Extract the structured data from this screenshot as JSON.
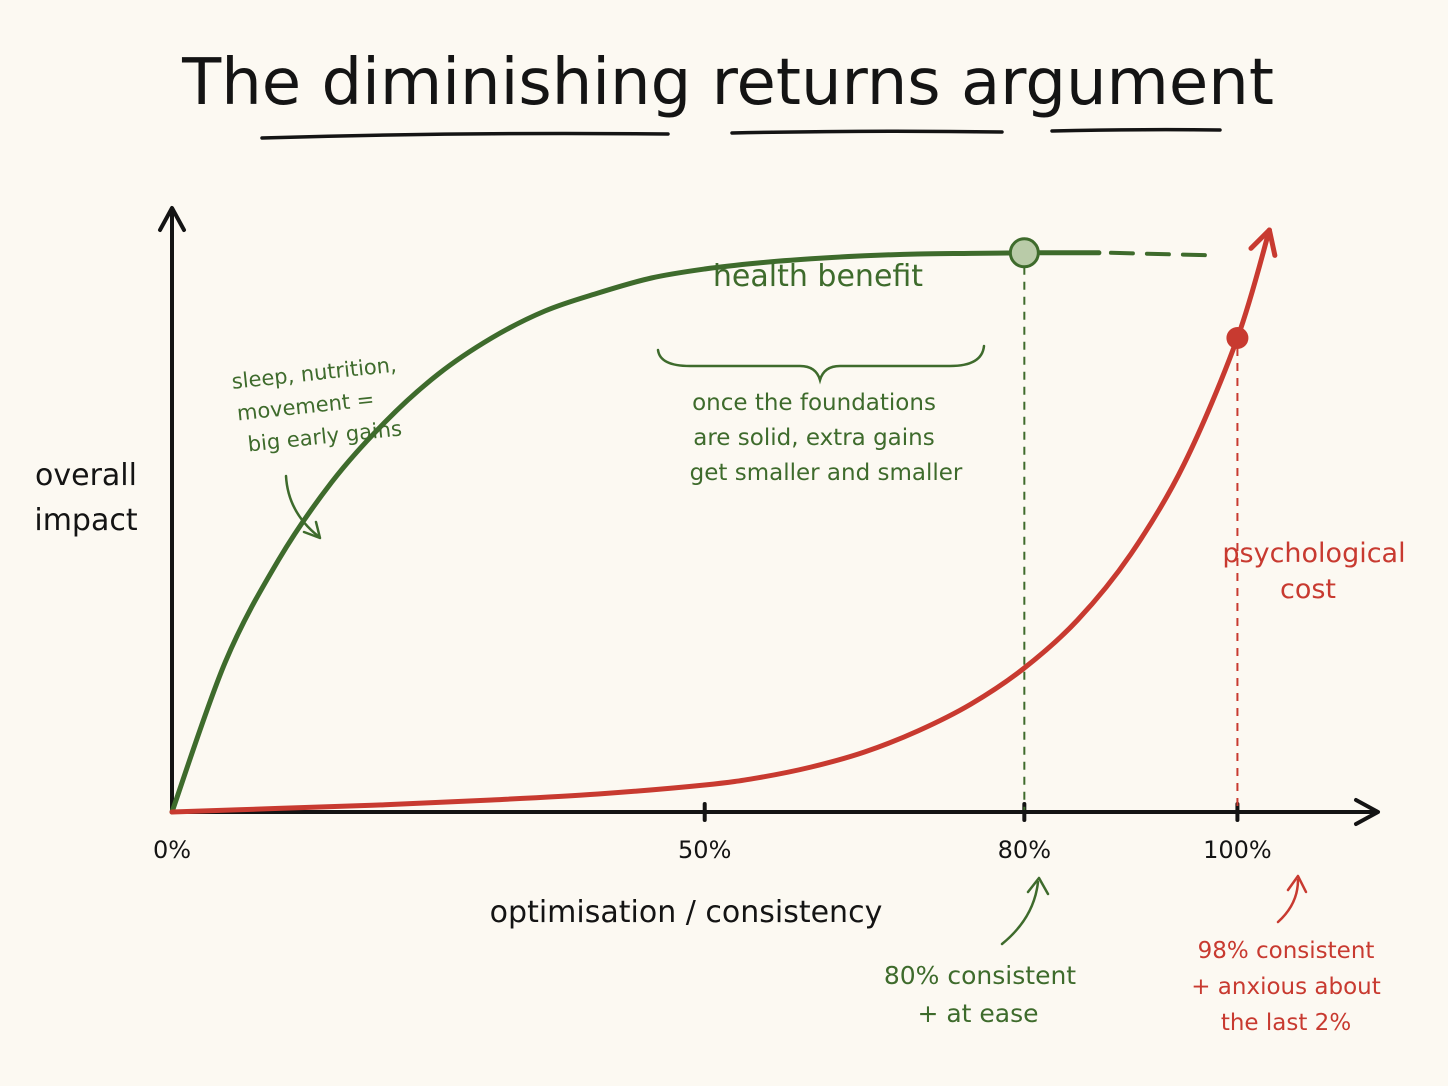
{
  "chart_data": {
    "type": "line",
    "title": "The diminishing returns argument",
    "xlabel": "optimisation / consistency",
    "ylabel": [
      "overall",
      "impact"
    ],
    "x_ticks": [
      "0%",
      "50%",
      "80%",
      "100%"
    ],
    "x_tick_values": [
      0,
      50,
      80,
      100
    ],
    "xlim": [
      0,
      107
    ],
    "ylim": [
      0,
      100
    ],
    "grid": false,
    "legend": "none",
    "series": [
      {
        "name": "health benefit",
        "color": "#3e6b2c",
        "x": [
          0,
          5,
          10,
          15,
          20,
          25,
          30,
          35,
          40,
          45,
          50,
          55,
          60,
          65,
          70,
          75,
          80,
          85,
          87
        ],
        "y": [
          0,
          25,
          42,
          55,
          65,
          73,
          79,
          83.5,
          86.5,
          89,
          90.5,
          91.5,
          92.2,
          92.7,
          93,
          93.1,
          93.2,
          93.2,
          93.2
        ],
        "extension": {
          "style": "dashed",
          "x": [
            87,
            97
          ],
          "y": [
            93.2,
            92.8
          ]
        }
      },
      {
        "name": "psychological cost",
        "color": "#c83a30",
        "x": [
          0,
          10,
          20,
          30,
          40,
          50,
          55,
          60,
          65,
          70,
          75,
          80,
          85,
          90,
          95,
          100,
          103
        ],
        "y": [
          0,
          0.6,
          1.2,
          2.0,
          3.0,
          4.5,
          5.7,
          7.5,
          10,
          13.5,
          18,
          24,
          32,
          43,
          58,
          79,
          97
        ]
      }
    ],
    "markers": [
      {
        "series": "health benefit",
        "x": 80,
        "y": 93.2,
        "style": "open-circle",
        "color": "#3e6b2c"
      },
      {
        "series": "psychological cost",
        "x": 100,
        "y": 79,
        "style": "filled-dot",
        "color": "#c83a30"
      }
    ],
    "reference_lines": [
      {
        "x": 80,
        "color": "#3e6b2c",
        "style": "dashed"
      },
      {
        "x": 100,
        "color": "#c83a30",
        "style": "dashed"
      }
    ],
    "annotations": {
      "early_gains": [
        "sleep, nutrition,",
        "movement =",
        "big early gains"
      ],
      "foundations": [
        "once the foundations",
        "are solid, extra gains",
        "get smaller and smaller"
      ],
      "at_80": [
        "80% consistent",
        "+ at ease"
      ],
      "at_100": [
        "98% consistent",
        "+ anxious about",
        "the last 2%"
      ]
    }
  }
}
